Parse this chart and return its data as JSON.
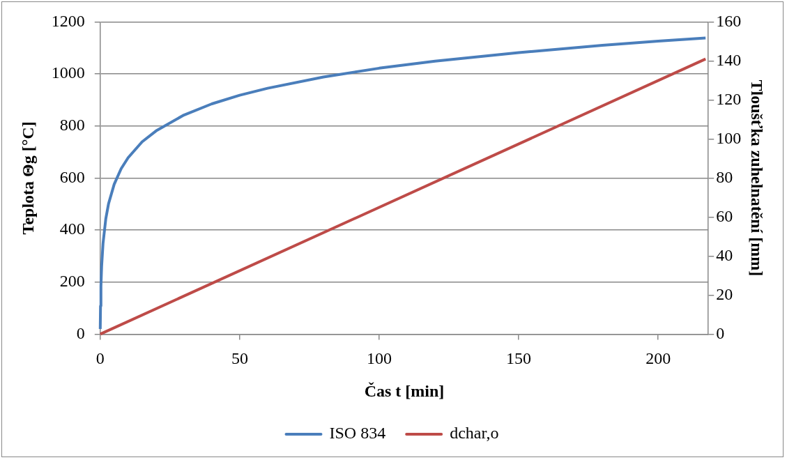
{
  "chart_data": {
    "type": "line",
    "xlabel": "Čas t [min]",
    "ylabel": "Teplota Θg [°C]",
    "y2label": "Tloušťka zuhelnatění [mm]",
    "xlim": [
      0,
      218
    ],
    "xticks": [
      0,
      50,
      100,
      150,
      200
    ],
    "ylim": [
      0,
      1200
    ],
    "yticks": [
      0,
      200,
      400,
      600,
      800,
      1000,
      1200
    ],
    "y2lim": [
      0,
      160
    ],
    "y2ticks": [
      0,
      20,
      40,
      60,
      80,
      100,
      120,
      140,
      160
    ],
    "grid": "y",
    "legend": "bottom",
    "marker": "none",
    "line_style": "solid",
    "series": [
      {
        "name": "ISO 834",
        "color": "#4a7ebb",
        "x": [
          0,
          0.1,
          0.25,
          0.5,
          1,
          2,
          3,
          5,
          7.5,
          10,
          15,
          20,
          30,
          40,
          50,
          60,
          80,
          100,
          120,
          150,
          180,
          200,
          217
        ],
        "values": [
          20,
          108,
          185,
          261,
          349,
          444,
          502,
          576,
          636,
          678,
          739,
          781,
          842,
          885,
          918,
          945,
          988,
          1022,
          1049,
          1082,
          1110,
          1126,
          1138
        ]
      },
      {
        "name": "dchar,o",
        "color": "#be4b48",
        "axis": "y2",
        "x": [
          0,
          217
        ],
        "values": [
          0,
          141
        ]
      }
    ]
  }
}
